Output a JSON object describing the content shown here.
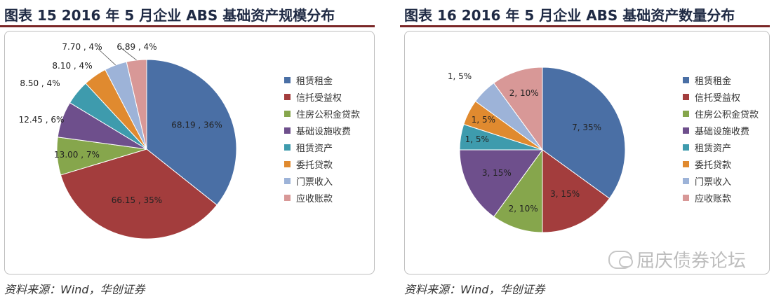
{
  "legend_colors": [
    "#4a6fa5",
    "#a33d3d",
    "#86a64c",
    "#6e4f8c",
    "#3e9bad",
    "#e08a2f",
    "#9db3d8",
    "#d89897"
  ],
  "figures": [
    {
      "title": "图表 15    2016 年 5 月企业 ABS 基础资产规模分布",
      "source": "资料来源：Wind，华创证券"
    },
    {
      "title": "图表 16    2016 年 5 月企业 ABS 基础资产数量分布",
      "source": "资料来源：Wind，华创证券",
      "watermark": "屈庆债券论坛"
    }
  ],
  "chart_data": [
    {
      "type": "pie",
      "title": "",
      "categories": [
        "租赁租金",
        "信托受益权",
        "住房公积金贷款",
        "基础设施收费",
        "租赁资产",
        "委托贷款",
        "门票收入",
        "应收账款"
      ],
      "values": [
        68.19,
        66.15,
        13.0,
        12.45,
        8.5,
        8.1,
        7.7,
        6.89
      ],
      "percents": [
        36,
        35,
        7,
        6,
        4,
        4,
        4,
        4
      ],
      "data_labels": [
        "68.19 , 36%",
        "66.15 , 35%",
        "13.00 , 7%",
        "12.45 , 6%",
        "8.50 , 4%",
        "8.10 , 4%",
        "7.70 , 4%",
        "6.89 , 4%"
      ],
      "legend_position": "right"
    },
    {
      "type": "pie",
      "title": "",
      "categories": [
        "租赁租金",
        "信托受益权",
        "住房公积金贷款",
        "基础设施收费",
        "租赁资产",
        "委托贷款",
        "门票收入",
        "应收账款"
      ],
      "values": [
        7,
        3,
        2,
        3,
        1,
        1,
        1,
        2
      ],
      "percents": [
        35,
        15,
        10,
        15,
        5,
        5,
        5,
        10
      ],
      "data_labels": [
        "7, 35%",
        "3, 15%",
        "2, 10%",
        "3, 15%",
        "1, 5%",
        "1, 5%",
        "1, 5%",
        "2, 10%"
      ],
      "legend_position": "right"
    }
  ]
}
